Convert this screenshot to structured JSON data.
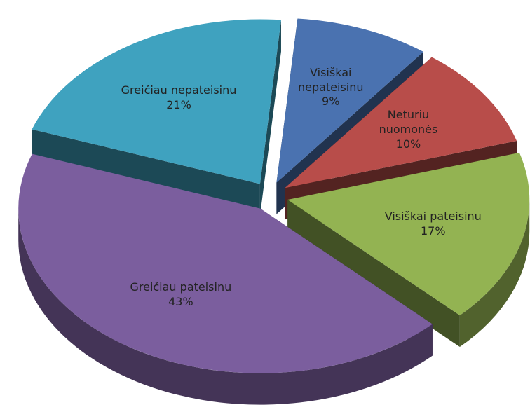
{
  "chart_data": {
    "type": "pie",
    "categories": [
      "Visiškai nepateisinu",
      "Neturiu nuomonės",
      "Visiškai pateisinu",
      "Greičiau pateisinu",
      "Greičiau nepateisinu"
    ],
    "values": [
      9,
      10,
      17,
      43,
      21
    ],
    "value_labels": [
      "9%",
      "10%",
      "17%",
      "43%",
      "21%"
    ],
    "colors": [
      "#4a72b0",
      "#b84d4a",
      "#93b352",
      "#7b5e9e",
      "#3fa2bf"
    ]
  }
}
